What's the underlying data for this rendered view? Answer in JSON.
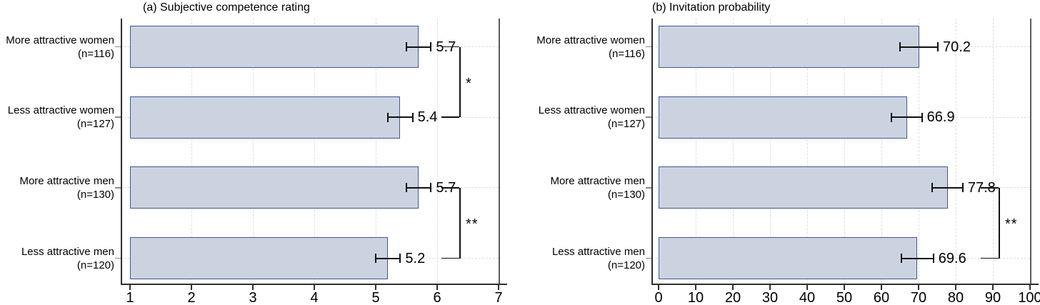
{
  "colors": {
    "bar_fill": "#ccd3e0",
    "bar_border": "#3f5a8e",
    "grid": "#dfdfdf",
    "axis": "#303030",
    "frame": "#5a5a5a",
    "error": "#111111",
    "category_tick": "#8a8a8a",
    "text": "#000000",
    "background": "#ffffff"
  },
  "chart_data": [
    {
      "type": "bar",
      "orientation": "horizontal",
      "title": "(a) Subjective competence rating",
      "categories": [
        [
          "More attractive women",
          "(n=116)"
        ],
        [
          "Less attractive women",
          "(n=127)"
        ],
        [
          "More attractive men",
          "(n=130)"
        ],
        [
          "Less attractive men",
          "(n=120)"
        ]
      ],
      "values": [
        5.7,
        5.4,
        5.7,
        5.2
      ],
      "value_labels": [
        "5.7",
        "5.4",
        "5.7",
        "5.2"
      ],
      "ci": [
        [
          5.5,
          5.9
        ],
        [
          5.2,
          5.6
        ],
        [
          5.5,
          5.9
        ],
        [
          5.0,
          5.4
        ]
      ],
      "bar_start": 1,
      "xlim": [
        1,
        7
      ],
      "xticks": [
        1,
        2,
        3,
        4,
        5,
        6,
        7
      ],
      "grid": true,
      "legend": null,
      "significance": [
        {
          "between": [
            0,
            1
          ],
          "label": "*"
        },
        {
          "between": [
            2,
            3
          ],
          "label": "**"
        }
      ]
    },
    {
      "type": "bar",
      "orientation": "horizontal",
      "title": "(b) Invitation probability",
      "categories": [
        [
          "More attractive women",
          "(n=116)"
        ],
        [
          "Less attractive women",
          "(n=127)"
        ],
        [
          "More attractive men",
          "(n=130)"
        ],
        [
          "Less attractive men",
          "(n=120)"
        ]
      ],
      "values": [
        70.2,
        66.9,
        77.8,
        69.6
      ],
      "value_labels": [
        "70.2",
        "66.9",
        "77.8",
        "69.6"
      ],
      "ci": [
        [
          65.0,
          75.2
        ],
        [
          62.7,
          70.9
        ],
        [
          73.7,
          81.9
        ],
        [
          65.4,
          74.0
        ]
      ],
      "bar_start": 0,
      "xlim": [
        0,
        100
      ],
      "xticks": [
        0,
        10,
        20,
        30,
        40,
        50,
        60,
        70,
        80,
        90,
        100
      ],
      "grid": true,
      "legend": null,
      "significance": [
        {
          "between": [
            2,
            3
          ],
          "label": "**"
        }
      ]
    }
  ]
}
